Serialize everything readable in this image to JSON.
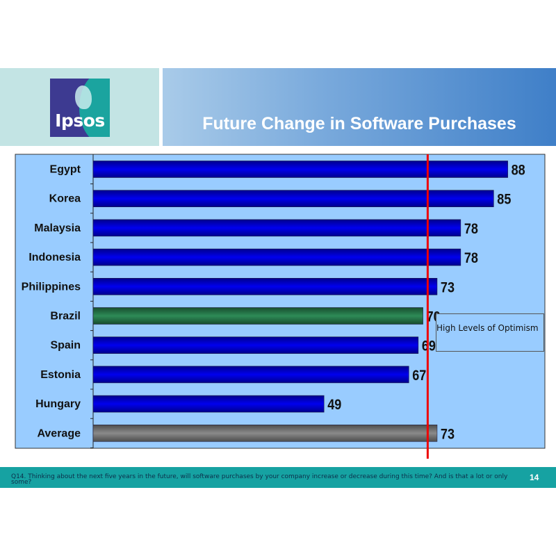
{
  "header": {
    "logo_text": "Ipsos",
    "title": "Future Change in Software Purchases"
  },
  "callout": {
    "text": "High Levels of Optimism"
  },
  "footer": {
    "footnote": "Q14. Thinking about the next five years in the future, will software purchases by your company increase or decrease during this time?  And is that a lot or only some?",
    "page_number": "14"
  },
  "colors": {
    "plot_background": "#99ccff",
    "bar_default": "#0000ee",
    "bar_brazil": "#2e8b57",
    "bar_average": "#8a8a8a",
    "reference_line": "#ee0000",
    "footer": "#16a2a2"
  },
  "chart_data": {
    "type": "bar",
    "orientation": "horizontal",
    "categories": [
      "Egypt",
      "Korea",
      "Malaysia",
      "Indonesia",
      "Philippines",
      "Brazil",
      "Spain",
      "Estonia",
      "Hungary",
      "Average"
    ],
    "values": [
      88,
      85,
      78,
      78,
      73,
      70,
      69,
      67,
      49,
      73
    ],
    "data_labels": [
      "88",
      "85",
      "78",
      "78",
      "73",
      "70",
      "69",
      "67",
      "49",
      "73"
    ],
    "reference_line": 71,
    "xlim": [
      0,
      100
    ],
    "highlight": {
      "Brazil": "#2e8b57",
      "Average": "#8a8a8a"
    },
    "grid": false,
    "legend": "none"
  }
}
